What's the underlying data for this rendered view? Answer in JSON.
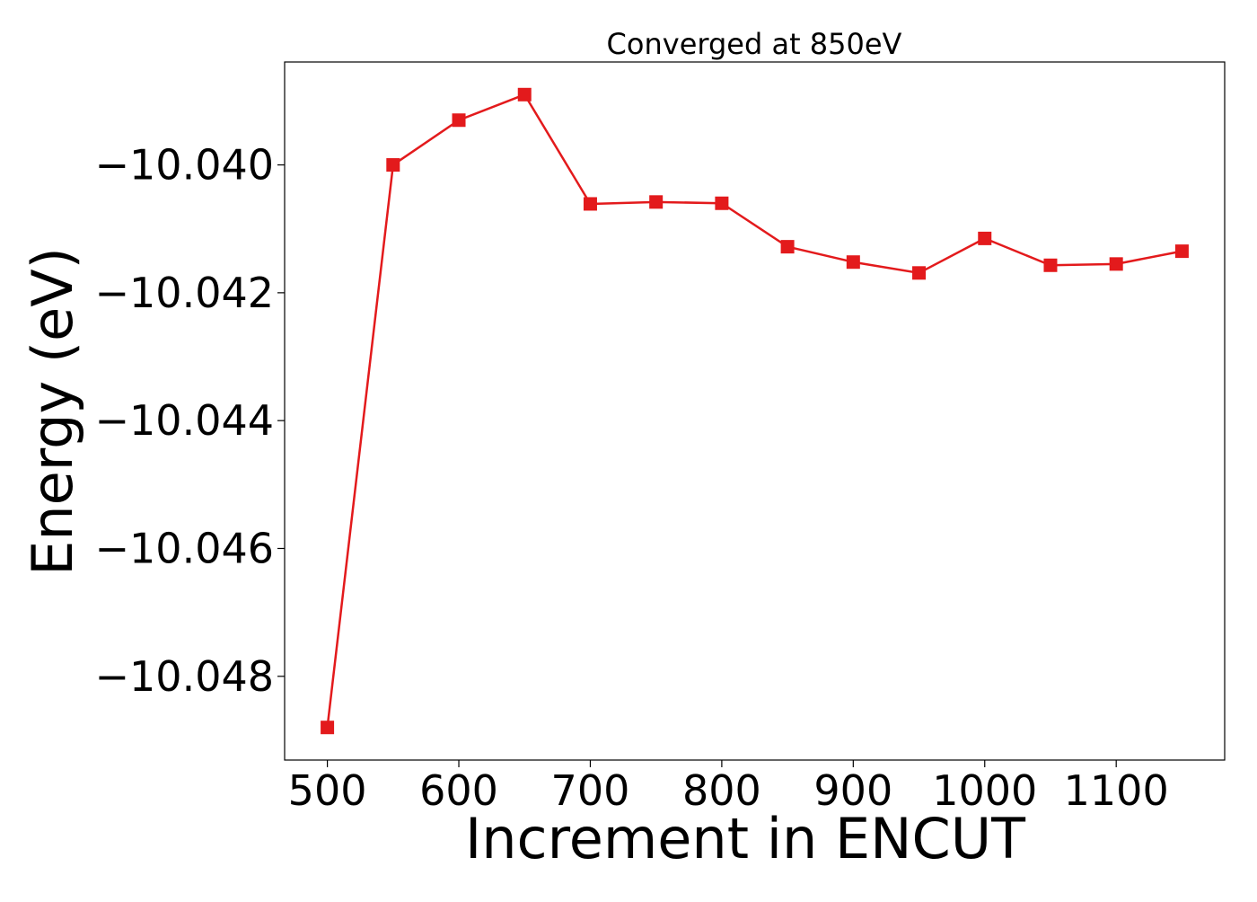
{
  "chart_data": {
    "type": "line",
    "title": "Converged at 850eV",
    "xlabel": "Increment in ENCUT",
    "ylabel": "Energy (eV)",
    "x": [
      500,
      550,
      600,
      650,
      700,
      750,
      800,
      850,
      900,
      950,
      1000,
      1050,
      1100,
      1150
    ],
    "series": [
      {
        "values": [
          -10.0488,
          -10.04,
          -10.0393,
          -10.0389,
          -10.04061,
          -10.04058,
          -10.0406,
          -10.04128,
          -10.04152,
          -10.04169,
          -10.04115,
          -10.04157,
          -10.04155,
          -10.04135
        ],
        "color": "#e31a1c",
        "marker": "square"
      }
    ],
    "xlim": [
      467.5,
      1182.5
    ],
    "ylim": [
      -10.04931,
      -10.03839
    ],
    "xticks": [
      500,
      600,
      700,
      800,
      900,
      1000,
      1100
    ],
    "xtick_labels": [
      "500",
      "600",
      "700",
      "800",
      "900",
      "1000",
      "1100"
    ],
    "yticks": [
      -10.04,
      -10.042,
      -10.044,
      -10.046,
      -10.048
    ],
    "ytick_labels": [
      "−10.040",
      "−10.042",
      "−10.044",
      "−10.046",
      "−10.048"
    ],
    "grid": false,
    "legend": "none"
  }
}
